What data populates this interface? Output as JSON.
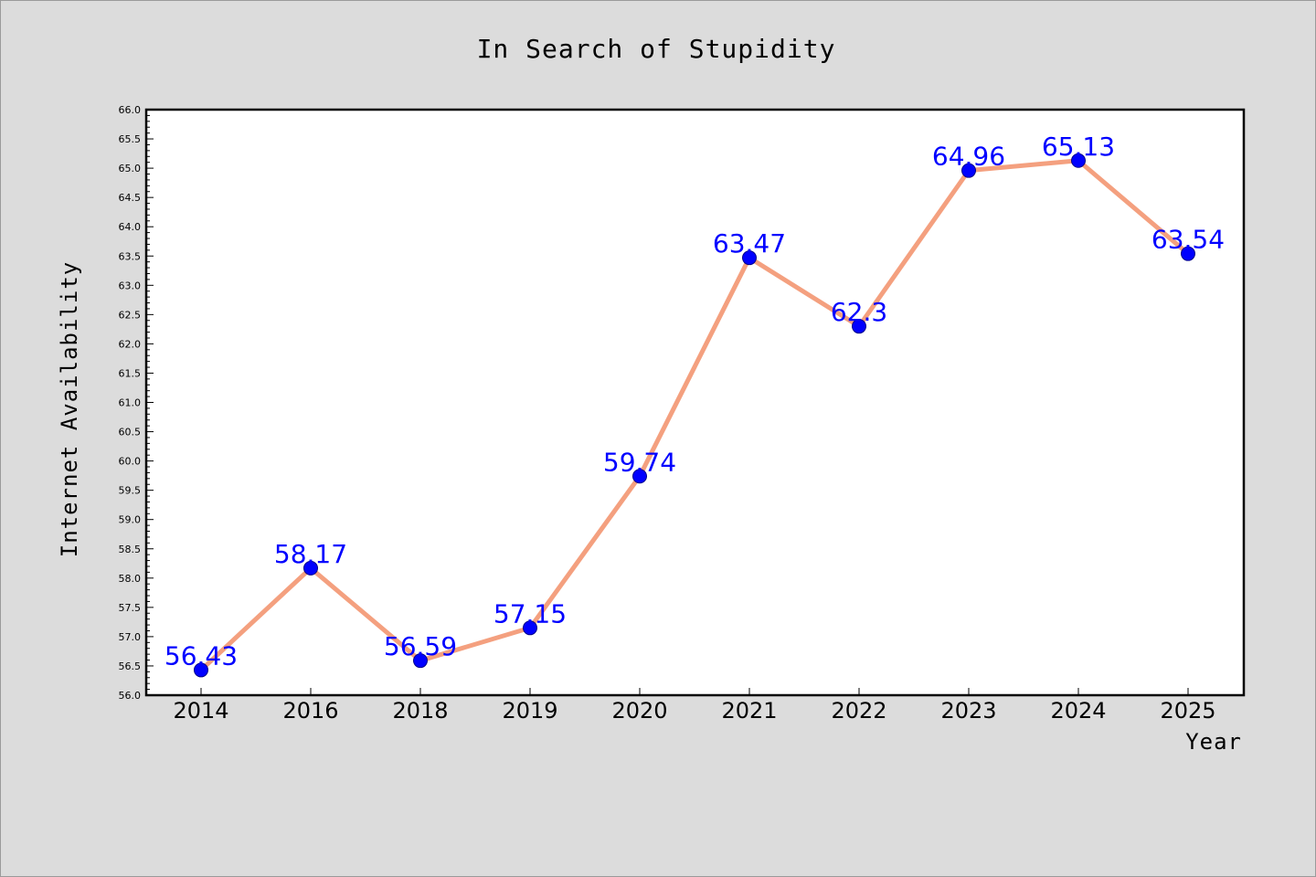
{
  "chart_data": {
    "type": "line",
    "title": "In Search of Stupidity",
    "xlabel": "Year",
    "ylabel": "Internet Availability",
    "categories": [
      "2014",
      "2016",
      "2018",
      "2019",
      "2020",
      "2021",
      "2022",
      "2023",
      "2024",
      "2025"
    ],
    "values": [
      56.43,
      58.17,
      56.59,
      57.15,
      59.74,
      63.47,
      62.3,
      64.96,
      65.13,
      63.54
    ],
    "data_labels": [
      "56.43",
      "58.17",
      "56.59",
      "57.15",
      "59.74",
      "63.47",
      "62.3",
      "64.96",
      "65.13",
      "63.54"
    ],
    "ylim": [
      56.0,
      66.0
    ],
    "ytick_step": 0.5,
    "yminor_step": 0.1,
    "grid": false,
    "legend": "none",
    "colors": {
      "background": "#dcdcdc",
      "plot_background": "#ffffff",
      "line": "#f4a07f",
      "marker": "#0000ff",
      "data_label": "#0000ff",
      "text": "#000000"
    }
  }
}
